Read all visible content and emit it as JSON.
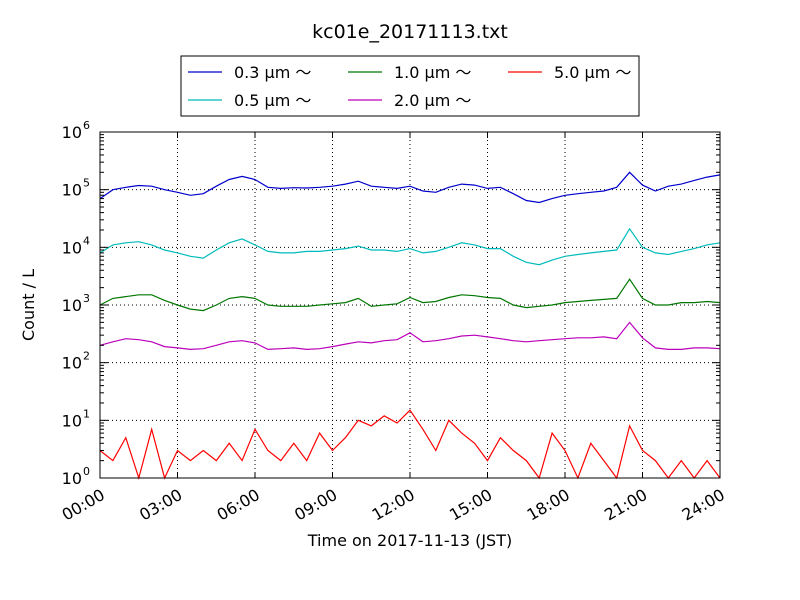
{
  "chart_data": {
    "type": "line",
    "title": "kc01e_20171113.txt",
    "xlabel": "Time on 2017-11-13 (JST)",
    "ylabel": "Count / L",
    "xlim": [
      "00:00",
      "24:00"
    ],
    "ylim": [
      1,
      1000000
    ],
    "yscale": "log",
    "grid": true,
    "legend_position": "top-center",
    "x_tick_labels": [
      "00:00",
      "03:00",
      "06:00",
      "09:00",
      "12:00",
      "15:00",
      "18:00",
      "21:00",
      "24:00"
    ],
    "y_tick_labels": [
      {
        "base": "10",
        "exp": "0"
      },
      {
        "base": "10",
        "exp": "1"
      },
      {
        "base": "10",
        "exp": "2"
      },
      {
        "base": "10",
        "exp": "3"
      },
      {
        "base": "10",
        "exp": "4"
      },
      {
        "base": "10",
        "exp": "5"
      },
      {
        "base": "10",
        "exp": "6"
      }
    ],
    "series": [
      {
        "name": "0.3 μm ～",
        "color": "#0000cc",
        "x": [
          "00:00",
          "00:30",
          "01:00",
          "01:30",
          "02:00",
          "02:30",
          "03:00",
          "03:30",
          "04:00",
          "04:30",
          "05:00",
          "05:30",
          "06:00",
          "06:30",
          "07:00",
          "07:30",
          "08:00",
          "08:30",
          "09:00",
          "09:30",
          "10:00",
          "10:30",
          "11:00",
          "11:30",
          "12:00",
          "12:30",
          "13:00",
          "13:30",
          "14:00",
          "14:30",
          "15:00",
          "15:30",
          "16:00",
          "16:30",
          "17:00",
          "17:30",
          "18:00",
          "18:30",
          "19:00",
          "19:30",
          "20:00",
          "20:30",
          "21:00",
          "21:30",
          "22:00",
          "22:30",
          "23:00",
          "23:30",
          "24:00"
        ],
        "values": [
          70000,
          100000,
          110000,
          118000,
          115000,
          100000,
          90000,
          80000,
          85000,
          115000,
          150000,
          170000,
          150000,
          110000,
          105000,
          108000,
          107000,
          110000,
          115000,
          125000,
          140000,
          115000,
          110000,
          105000,
          115000,
          95000,
          90000,
          110000,
          125000,
          120000,
          105000,
          110000,
          85000,
          65000,
          60000,
          70000,
          80000,
          85000,
          90000,
          95000,
          110000,
          200000,
          120000,
          95000,
          115000,
          125000,
          145000,
          165000,
          180000
        ]
      },
      {
        "name": "0.5 μm ～",
        "color": "#00bbbb",
        "x": [
          "00:00",
          "00:30",
          "01:00",
          "01:30",
          "02:00",
          "02:30",
          "03:00",
          "03:30",
          "04:00",
          "04:30",
          "05:00",
          "05:30",
          "06:00",
          "06:30",
          "07:00",
          "07:30",
          "08:00",
          "08:30",
          "09:00",
          "09:30",
          "10:00",
          "10:30",
          "11:00",
          "11:30",
          "12:00",
          "12:30",
          "13:00",
          "13:30",
          "14:00",
          "14:30",
          "15:00",
          "15:30",
          "16:00",
          "16:30",
          "17:00",
          "17:30",
          "18:00",
          "18:30",
          "19:00",
          "19:30",
          "20:00",
          "20:30",
          "21:00",
          "21:30",
          "22:00",
          "22:30",
          "23:00",
          "23:30",
          "24:00"
        ],
        "values": [
          8000,
          11000,
          12000,
          12500,
          11000,
          9000,
          8000,
          7000,
          6500,
          9000,
          12000,
          14000,
          11000,
          8500,
          8000,
          8000,
          8500,
          8500,
          9000,
          9500,
          10500,
          9000,
          9000,
          8500,
          9500,
          8000,
          8500,
          10000,
          12000,
          11000,
          9500,
          9500,
          7000,
          5500,
          5000,
          6000,
          7000,
          7500,
          8000,
          8500,
          9000,
          21000,
          10000,
          8000,
          7500,
          8500,
          9500,
          11000,
          12000
        ]
      },
      {
        "name": "1.0 μm ～",
        "color": "#007700",
        "x": [
          "00:00",
          "00:30",
          "01:00",
          "01:30",
          "02:00",
          "02:30",
          "03:00",
          "03:30",
          "04:00",
          "04:30",
          "05:00",
          "05:30",
          "06:00",
          "06:30",
          "07:00",
          "07:30",
          "08:00",
          "08:30",
          "09:00",
          "09:30",
          "10:00",
          "10:30",
          "11:00",
          "11:30",
          "12:00",
          "12:30",
          "13:00",
          "13:30",
          "14:00",
          "14:30",
          "15:00",
          "15:30",
          "16:00",
          "16:30",
          "17:00",
          "17:30",
          "18:00",
          "18:30",
          "19:00",
          "19:30",
          "20:00",
          "20:30",
          "21:00",
          "21:30",
          "22:00",
          "22:30",
          "23:00",
          "23:30",
          "24:00"
        ],
        "values": [
          1000,
          1300,
          1400,
          1500,
          1500,
          1200,
          1000,
          850,
          800,
          1000,
          1300,
          1400,
          1300,
          1000,
          950,
          950,
          950,
          1000,
          1050,
          1100,
          1300,
          950,
          1000,
          1050,
          1350,
          1100,
          1150,
          1350,
          1500,
          1450,
          1350,
          1300,
          1000,
          900,
          950,
          1000,
          1100,
          1150,
          1200,
          1250,
          1300,
          2800,
          1300,
          1000,
          1000,
          1100,
          1100,
          1150,
          1100
        ]
      },
      {
        "name": "2.0 μm ～",
        "color": "#bb00bb",
        "x": [
          "00:00",
          "00:30",
          "01:00",
          "01:30",
          "02:00",
          "02:30",
          "03:00",
          "03:30",
          "04:00",
          "04:30",
          "05:00",
          "05:30",
          "06:00",
          "06:30",
          "07:00",
          "07:30",
          "08:00",
          "08:30",
          "09:00",
          "09:30",
          "10:00",
          "10:30",
          "11:00",
          "11:30",
          "12:00",
          "12:30",
          "13:00",
          "13:30",
          "14:00",
          "14:30",
          "15:00",
          "15:30",
          "16:00",
          "16:30",
          "17:00",
          "17:30",
          "18:00",
          "18:30",
          "19:00",
          "19:30",
          "20:00",
          "20:30",
          "21:00",
          "21:30",
          "22:00",
          "22:30",
          "23:00",
          "23:30",
          "24:00"
        ],
        "values": [
          200,
          230,
          260,
          250,
          230,
          190,
          180,
          170,
          175,
          200,
          230,
          240,
          220,
          170,
          175,
          180,
          170,
          175,
          190,
          210,
          230,
          220,
          240,
          250,
          330,
          230,
          240,
          260,
          290,
          300,
          280,
          260,
          240,
          230,
          240,
          250,
          260,
          270,
          270,
          280,
          260,
          500,
          270,
          180,
          170,
          170,
          180,
          180,
          175
        ]
      },
      {
        "name": "5.0 μm ～",
        "color": "#ff0000",
        "x": [
          "00:00",
          "00:30",
          "01:00",
          "01:30",
          "02:00",
          "02:30",
          "03:00",
          "03:30",
          "04:00",
          "04:30",
          "05:00",
          "05:30",
          "06:00",
          "06:30",
          "07:00",
          "07:30",
          "08:00",
          "08:30",
          "09:00",
          "09:30",
          "10:00",
          "10:30",
          "11:00",
          "11:30",
          "12:00",
          "12:30",
          "13:00",
          "13:30",
          "14:00",
          "14:30",
          "15:00",
          "15:30",
          "16:00",
          "16:30",
          "17:00",
          "17:30",
          "18:00",
          "18:30",
          "19:00",
          "19:30",
          "20:00",
          "20:30",
          "21:00",
          "21:30",
          "22:00",
          "22:30",
          "23:00",
          "23:30",
          "24:00"
        ],
        "values": [
          3,
          2,
          5,
          1,
          7,
          1,
          3,
          2,
          3,
          2,
          4,
          2,
          7,
          3,
          2,
          4,
          2,
          6,
          3,
          5,
          10,
          8,
          12,
          9,
          15,
          7,
          3,
          10,
          6,
          4,
          2,
          5,
          3,
          2,
          1,
          6,
          3,
          1,
          4,
          2,
          1,
          8,
          3,
          2,
          1,
          2,
          1,
          2,
          1
        ]
      }
    ]
  }
}
